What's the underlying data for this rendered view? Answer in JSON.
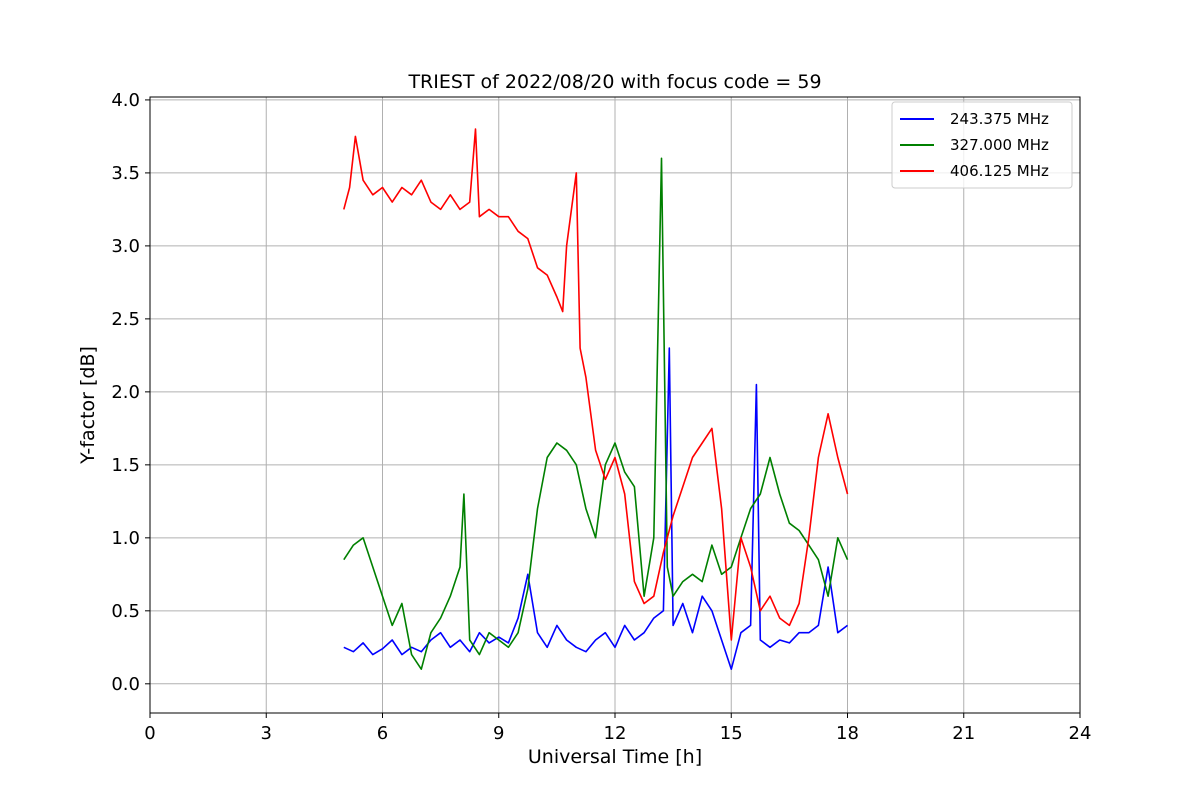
{
  "chart_data": {
    "type": "line",
    "title": "TRIEST of 2022/08/20 with focus code = 59",
    "xlabel": "Universal Time [h]",
    "ylabel": "Y-factor [dB]",
    "xlim": [
      0,
      24
    ],
    "ylim": [
      -0.2,
      4.02
    ],
    "xticks": [
      0,
      3,
      6,
      9,
      12,
      15,
      18,
      21,
      24
    ],
    "yticks": [
      0.0,
      0.5,
      1.0,
      1.5,
      2.0,
      2.5,
      3.0,
      3.5,
      4.0
    ],
    "xtick_labels": [
      "0",
      "3",
      "6",
      "9",
      "12",
      "15",
      "18",
      "21",
      "24"
    ],
    "ytick_labels": [
      "0.0",
      "0.5",
      "1.0",
      "1.5",
      "2.0",
      "2.5",
      "3.0",
      "3.5",
      "4.0"
    ],
    "grid": true,
    "legend_position": "top-right",
    "series": [
      {
        "name": "243.375 MHz",
        "color": "#0000ff",
        "x": [
          5.0,
          5.25,
          5.5,
          5.75,
          6.0,
          6.25,
          6.5,
          6.75,
          7.0,
          7.25,
          7.5,
          7.75,
          8.0,
          8.25,
          8.5,
          8.75,
          9.0,
          9.25,
          9.5,
          9.75,
          10.0,
          10.25,
          10.5,
          10.75,
          11.0,
          11.25,
          11.5,
          11.75,
          12.0,
          12.25,
          12.5,
          12.75,
          13.0,
          13.25,
          13.4,
          13.5,
          13.75,
          14.0,
          14.25,
          14.5,
          14.75,
          15.0,
          15.25,
          15.5,
          15.65,
          15.75,
          16.0,
          16.25,
          16.5,
          16.75,
          17.0,
          17.25,
          17.5,
          17.75,
          18.0
        ],
        "values": [
          0.25,
          0.22,
          0.28,
          0.2,
          0.24,
          0.3,
          0.2,
          0.25,
          0.22,
          0.3,
          0.35,
          0.25,
          0.3,
          0.22,
          0.35,
          0.28,
          0.32,
          0.28,
          0.45,
          0.75,
          0.35,
          0.25,
          0.4,
          0.3,
          0.25,
          0.22,
          0.3,
          0.35,
          0.25,
          0.4,
          0.3,
          0.35,
          0.45,
          0.5,
          2.3,
          0.4,
          0.55,
          0.35,
          0.6,
          0.5,
          0.3,
          0.1,
          0.35,
          0.4,
          2.05,
          0.3,
          0.25,
          0.3,
          0.28,
          0.35,
          0.35,
          0.4,
          0.8,
          0.35,
          0.4
        ]
      },
      {
        "name": "327.000 MHz",
        "color": "#008000",
        "x": [
          5.0,
          5.25,
          5.5,
          5.75,
          6.0,
          6.25,
          6.5,
          6.75,
          7.0,
          7.25,
          7.5,
          7.75,
          8.0,
          8.1,
          8.25,
          8.5,
          8.75,
          9.0,
          9.25,
          9.5,
          9.75,
          10.0,
          10.25,
          10.5,
          10.75,
          11.0,
          11.25,
          11.5,
          11.75,
          12.0,
          12.25,
          12.5,
          12.75,
          13.0,
          13.2,
          13.35,
          13.5,
          13.75,
          14.0,
          14.25,
          14.5,
          14.75,
          15.0,
          15.25,
          15.5,
          15.75,
          16.0,
          16.25,
          16.5,
          16.75,
          17.0,
          17.25,
          17.5,
          17.75,
          18.0
        ],
        "values": [
          0.85,
          0.95,
          1.0,
          0.8,
          0.6,
          0.4,
          0.55,
          0.2,
          0.1,
          0.35,
          0.45,
          0.6,
          0.8,
          1.3,
          0.3,
          0.2,
          0.35,
          0.3,
          0.25,
          0.35,
          0.65,
          1.2,
          1.55,
          1.65,
          1.6,
          1.5,
          1.2,
          1.0,
          1.5,
          1.65,
          1.45,
          1.35,
          0.6,
          1.0,
          3.6,
          0.8,
          0.6,
          0.7,
          0.75,
          0.7,
          0.95,
          0.75,
          0.8,
          1.0,
          1.2,
          1.3,
          1.55,
          1.3,
          1.1,
          1.05,
          0.95,
          0.85,
          0.6,
          1.0,
          0.85
        ]
      },
      {
        "name": "406.125 MHz",
        "color": "#ff0000",
        "x": [
          5.0,
          5.15,
          5.3,
          5.5,
          5.75,
          6.0,
          6.25,
          6.5,
          6.75,
          7.0,
          7.25,
          7.5,
          7.75,
          8.0,
          8.25,
          8.4,
          8.5,
          8.75,
          9.0,
          9.25,
          9.5,
          9.75,
          10.0,
          10.25,
          10.5,
          10.65,
          10.75,
          11.0,
          11.1,
          11.25,
          11.5,
          11.75,
          12.0,
          12.25,
          12.5,
          12.75,
          13.0,
          13.25,
          13.5,
          13.75,
          14.0,
          14.25,
          14.5,
          14.75,
          15.0,
          15.25,
          15.5,
          15.75,
          16.0,
          16.25,
          16.5,
          16.75,
          17.0,
          17.25,
          17.5,
          17.75,
          18.0
        ],
        "values": [
          3.25,
          3.4,
          3.75,
          3.45,
          3.35,
          3.4,
          3.3,
          3.4,
          3.35,
          3.45,
          3.3,
          3.25,
          3.35,
          3.25,
          3.3,
          3.8,
          3.2,
          3.25,
          3.2,
          3.2,
          3.1,
          3.05,
          2.85,
          2.8,
          2.65,
          2.55,
          3.0,
          3.5,
          2.3,
          2.1,
          1.6,
          1.4,
          1.55,
          1.3,
          0.7,
          0.55,
          0.6,
          0.9,
          1.15,
          1.35,
          1.55,
          1.65,
          1.75,
          1.2,
          0.3,
          1.0,
          0.8,
          0.5,
          0.6,
          0.45,
          0.4,
          0.55,
          1.0,
          1.55,
          1.85,
          1.55,
          1.3
        ]
      }
    ]
  }
}
